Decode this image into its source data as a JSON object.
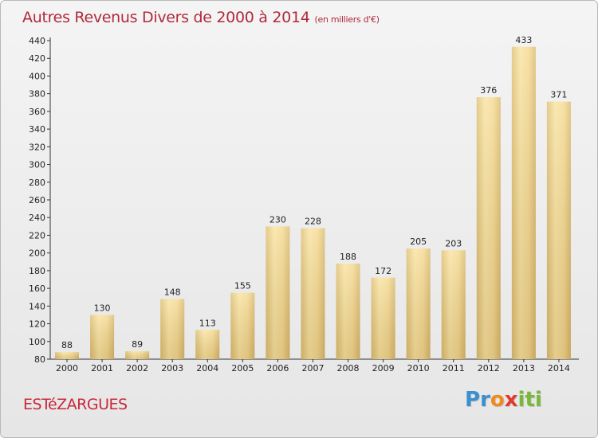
{
  "header": {
    "title": "Autres Revenus Divers de 2000 à 2014",
    "subtitle": "(en milliers d'€)"
  },
  "commune": "ESTéZARGUES",
  "logo": {
    "letters": [
      "P",
      "r",
      "o",
      "x",
      "i",
      "t",
      "i"
    ],
    "colors": [
      "#3a8fd0",
      "#3a8fd0",
      "#f08a1c",
      "#e23a2f",
      "#7ab83a",
      "#7ab83a",
      "#7ab83a"
    ]
  },
  "colors": {
    "bar_light": "#f5dc9c",
    "bar_dark": "#c9a860",
    "text_accent": "#b02a3b"
  },
  "chart_data": {
    "type": "bar",
    "categories": [
      "2000",
      "2001",
      "2002",
      "2003",
      "2004",
      "2005",
      "2006",
      "2007",
      "2008",
      "2009",
      "2010",
      "2011",
      "2012",
      "2013",
      "2014"
    ],
    "values": [
      88,
      130,
      89,
      148,
      113,
      155,
      230,
      228,
      188,
      172,
      205,
      203,
      376,
      433,
      371
    ],
    "data_labels": [
      "88",
      "130",
      "89",
      "148",
      "113",
      "155",
      "230",
      "228",
      "188",
      "172",
      "205",
      "203",
      "376",
      "433",
      "371"
    ],
    "ylim": [
      80,
      440
    ],
    "yticks": [
      "80",
      "100",
      "120",
      "140",
      "160",
      "180",
      "200",
      "220",
      "240",
      "260",
      "280",
      "300",
      "320",
      "340",
      "360",
      "380",
      "400",
      "420",
      "440"
    ],
    "grid": false,
    "legend": "none"
  }
}
